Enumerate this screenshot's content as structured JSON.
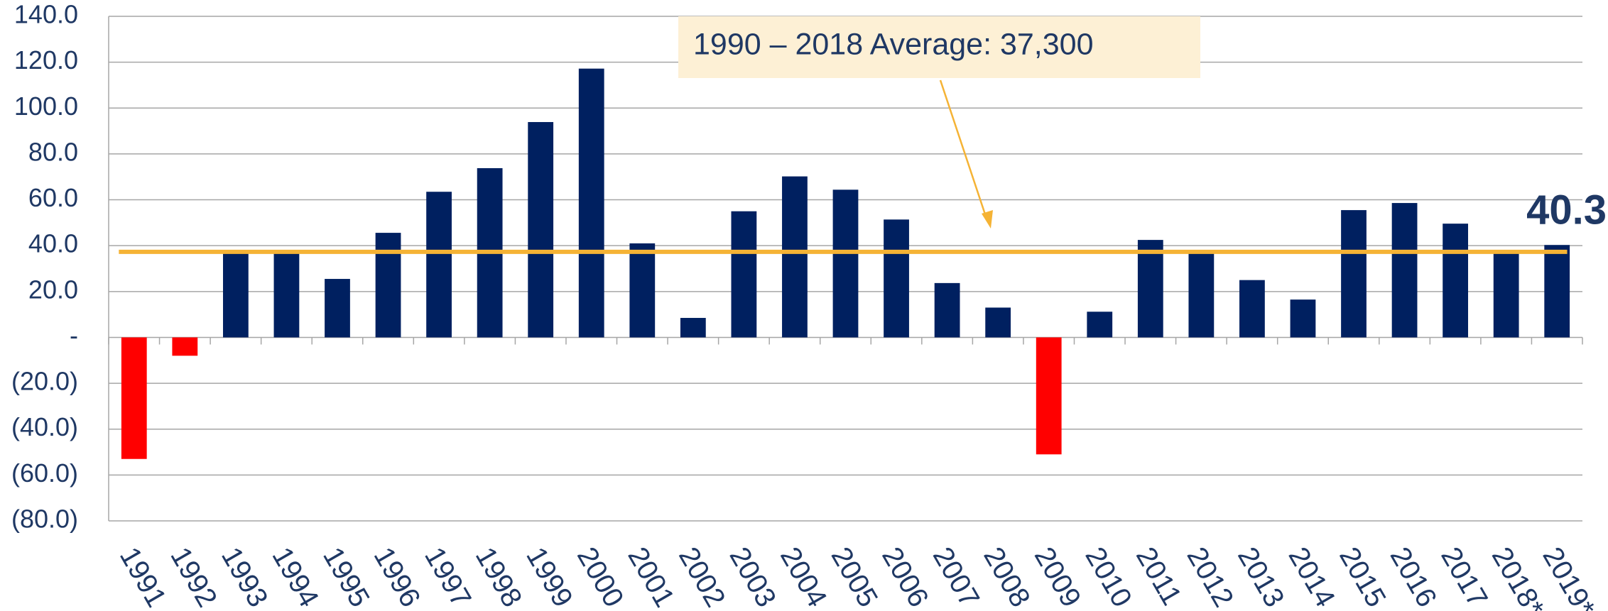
{
  "chart_data": {
    "type": "bar",
    "categories": [
      "1991",
      "1992",
      "1993",
      "1994",
      "1995",
      "1996",
      "1997",
      "1998",
      "1999",
      "2000",
      "2001",
      "2002",
      "2003",
      "2004",
      "2005",
      "2006",
      "2007",
      "2008",
      "2009",
      "2010",
      "2011",
      "2012",
      "2013",
      "2014",
      "2015",
      "2016",
      "2017",
      "2018*",
      "2019*"
    ],
    "values": [
      -53,
      -8,
      37,
      37,
      25.5,
      45.6,
      63.5,
      73.8,
      93.9,
      117.2,
      41,
      8.5,
      55,
      70.2,
      64.4,
      51.4,
      23.7,
      13,
      -51,
      11.2,
      42.5,
      36.7,
      25,
      16.5,
      55.5,
      58.6,
      49.6,
      37,
      40.3
    ],
    "color": "#002060",
    "negative_color": "#ff0000",
    "ylim": [
      -80,
      140
    ],
    "yticks": [
      {
        "value": -80,
        "label": "(80.0)"
      },
      {
        "value": -60,
        "label": "(60.0)"
      },
      {
        "value": -40,
        "label": "(40.0)"
      },
      {
        "value": -20,
        "label": "(20.0)"
      },
      {
        "value": 0,
        "label": "-"
      },
      {
        "value": 20,
        "label": "20.0"
      },
      {
        "value": 40,
        "label": "40.0"
      },
      {
        "value": 60,
        "label": "60.0"
      },
      {
        "value": 80,
        "label": "80.0"
      },
      {
        "value": 100,
        "label": "100.0"
      },
      {
        "value": 120,
        "label": "120.0"
      },
      {
        "value": 140,
        "label": "140.0"
      }
    ],
    "grid": true,
    "average_line": {
      "value": 37.3,
      "label": "1990 – 2018 Average: 37,300",
      "color": "#f5b335"
    }
  }
}
